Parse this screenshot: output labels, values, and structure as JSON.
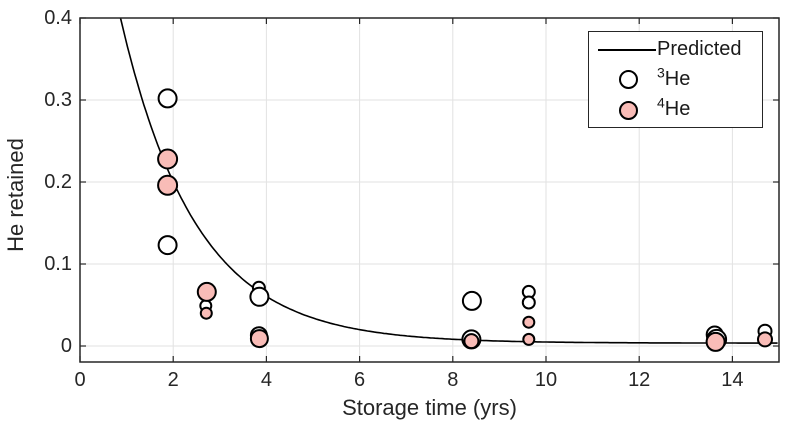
{
  "chart_data": {
    "type": "scatter",
    "title": "",
    "xlabel": "Storage time (yrs)",
    "ylabel": "He retained",
    "xlim": [
      0,
      15
    ],
    "ylim": [
      -0.0195,
      0.4
    ],
    "xticks": [
      0,
      2,
      4,
      6,
      8,
      10,
      12,
      14
    ],
    "yticks": [
      0,
      0.1,
      0.2,
      0.3,
      0.4
    ],
    "ytick_labels": [
      "0",
      "0.1",
      "0.2",
      "0.3",
      "0.4"
    ],
    "grid": true,
    "colors": {
      "predicted_line": "#000000",
      "he3_fill": "#ffffff",
      "he4_fill": "#f9bcb7",
      "marker_edge": "#000000",
      "axis": "#262626",
      "grid": "#e2e2e2"
    },
    "legend": {
      "position": "top-right",
      "entries": [
        {
          "type": "line",
          "sup": "",
          "label": "Predicted"
        },
        {
          "type": "marker",
          "sup": "3",
          "label": "He"
        },
        {
          "type": "marker",
          "sup": "4",
          "label": "He"
        }
      ]
    },
    "series": [
      {
        "name": "Predicted",
        "type": "line",
        "model": "y = A*exp(-k*t) + c",
        "params": {
          "A": 0.68,
          "k": 0.62,
          "c": 0.0035
        },
        "t_start": 0.87,
        "t_end": 15
      },
      {
        "name": "3He",
        "type": "scatter",
        "marker": "circle-open",
        "points": [
          [
            1.88,
            0.302,
            9
          ],
          [
            1.88,
            0.123,
            9
          ],
          [
            2.7,
            0.049,
            5.5
          ],
          [
            3.84,
            0.071,
            6
          ],
          [
            3.85,
            0.06,
            9
          ],
          [
            3.84,
            0.013,
            8
          ],
          [
            8.39,
            0.058,
            5.5
          ],
          [
            8.41,
            0.055,
            9
          ],
          [
            8.4,
            0.008,
            9
          ],
          [
            9.63,
            0.066,
            6
          ],
          [
            9.63,
            0.053,
            6
          ],
          [
            13.62,
            0.014,
            8
          ],
          [
            13.66,
            0.008,
            9.5
          ],
          [
            14.7,
            0.018,
            6.5
          ]
        ]
      },
      {
        "name": "4He",
        "type": "scatter",
        "marker": "circle-filled",
        "points": [
          [
            1.88,
            0.228,
            9.5
          ],
          [
            1.88,
            0.196,
            9.5
          ],
          [
            2.72,
            0.066,
            9
          ],
          [
            2.71,
            0.04,
            5.5
          ],
          [
            3.85,
            0.009,
            8.5
          ],
          [
            8.4,
            0.006,
            7
          ],
          [
            9.63,
            0.029,
            5.5
          ],
          [
            9.63,
            0.008,
            5.5
          ],
          [
            13.64,
            0.005,
            9
          ],
          [
            14.7,
            0.008,
            7
          ]
        ]
      }
    ]
  }
}
